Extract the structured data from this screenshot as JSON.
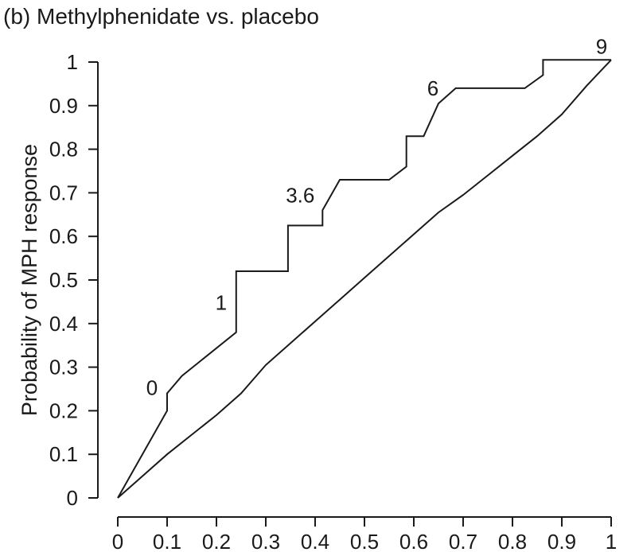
{
  "chart_data": {
    "type": "line",
    "title": "(b) Methylphenidate vs. placebo",
    "xlabel": "",
    "ylabel": "Probability of MPH response",
    "xlim": [
      0,
      1
    ],
    "ylim": [
      0,
      1
    ],
    "x_ticks": [
      "0",
      "0.1",
      "0.2",
      "0.3",
      "0.4",
      "0.5",
      "0.6",
      "0.7",
      "0.8",
      "0.9",
      "1"
    ],
    "y_ticks": [
      "0",
      "0.1",
      "0.2",
      "0.3",
      "0.4",
      "0.5",
      "0.6",
      "0.7",
      "0.8",
      "0.9",
      "1"
    ],
    "grid": false,
    "series": [
      {
        "points": [
          [
            0,
            0
          ],
          [
            0.1,
            0.2
          ],
          [
            0.1,
            0.24
          ],
          [
            0.13,
            0.28
          ],
          [
            0.24,
            0.38
          ],
          [
            0.24,
            0.52
          ],
          [
            0.345,
            0.52
          ],
          [
            0.345,
            0.625
          ],
          [
            0.415,
            0.625
          ],
          [
            0.415,
            0.66
          ],
          [
            0.45,
            0.73
          ],
          [
            0.55,
            0.73
          ],
          [
            0.585,
            0.76
          ],
          [
            0.585,
            0.83
          ],
          [
            0.62,
            0.83
          ],
          [
            0.65,
            0.905
          ],
          [
            0.685,
            0.94
          ],
          [
            0.825,
            0.94
          ],
          [
            0.862,
            0.97
          ],
          [
            0.862,
            1.005
          ],
          [
            1.0,
            1.005
          ]
        ]
      },
      {
        "points": [
          [
            0,
            0
          ],
          [
            0.05,
            0.05
          ],
          [
            0.1,
            0.1
          ],
          [
            0.15,
            0.145
          ],
          [
            0.2,
            0.19
          ],
          [
            0.25,
            0.24
          ],
          [
            0.3,
            0.305
          ],
          [
            0.35,
            0.355
          ],
          [
            0.4,
            0.405
          ],
          [
            0.45,
            0.455
          ],
          [
            0.5,
            0.505
          ],
          [
            0.55,
            0.555
          ],
          [
            0.6,
            0.605
          ],
          [
            0.65,
            0.655
          ],
          [
            0.7,
            0.695
          ],
          [
            0.75,
            0.74
          ],
          [
            0.8,
            0.785
          ],
          [
            0.85,
            0.83
          ],
          [
            0.9,
            0.88
          ],
          [
            0.95,
            0.945
          ],
          [
            1.0,
            1.005
          ]
        ]
      }
    ],
    "annotations": [
      {
        "text": "0",
        "x": 0.1,
        "y": 0.24
      },
      {
        "text": "1",
        "x": 0.24,
        "y": 0.45
      },
      {
        "text": "3.6",
        "x": 0.415,
        "y": 0.66
      },
      {
        "text": "6",
        "x": 0.65,
        "y": 0.905
      },
      {
        "text": "9",
        "x": 1.0,
        "y": 1.005
      }
    ]
  }
}
